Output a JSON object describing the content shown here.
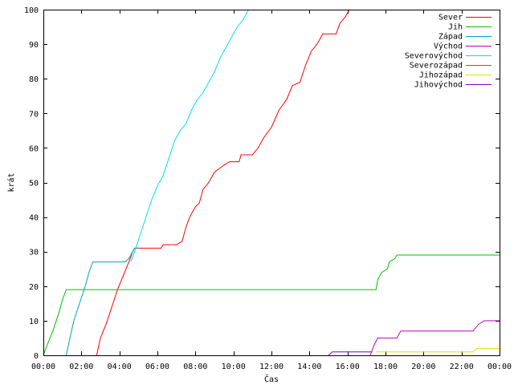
{
  "chart_data": {
    "type": "line",
    "xlabel": "Čas",
    "ylabel": "krát",
    "xlim": [
      0,
      24
    ],
    "ylim": [
      0,
      100
    ],
    "x_ticks": [
      {
        "v": 0,
        "label": "00:00"
      },
      {
        "v": 2,
        "label": "02:00"
      },
      {
        "v": 4,
        "label": "04:00"
      },
      {
        "v": 6,
        "label": "06:00"
      },
      {
        "v": 8,
        "label": "08:00"
      },
      {
        "v": 10,
        "label": "10:00"
      },
      {
        "v": 12,
        "label": "12:00"
      },
      {
        "v": 14,
        "label": "14:00"
      },
      {
        "v": 16,
        "label": "16:00"
      },
      {
        "v": 18,
        "label": "18:00"
      },
      {
        "v": 20,
        "label": "20:00"
      },
      {
        "v": 22,
        "label": "22:00"
      },
      {
        "v": 24,
        "label": "00:00"
      }
    ],
    "y_ticks": [
      {
        "v": 0,
        "label": "0"
      },
      {
        "v": 10,
        "label": "10"
      },
      {
        "v": 20,
        "label": "20"
      },
      {
        "v": 30,
        "label": "30"
      },
      {
        "v": 40,
        "label": "40"
      },
      {
        "v": 50,
        "label": "50"
      },
      {
        "v": 60,
        "label": "60"
      },
      {
        "v": 70,
        "label": "70"
      },
      {
        "v": 80,
        "label": "80"
      },
      {
        "v": 90,
        "label": "90"
      },
      {
        "v": 100,
        "label": "100"
      }
    ],
    "legend_position": "top-right",
    "grid": false,
    "series": [
      {
        "name": "Sever",
        "color": "#ff0000",
        "points": [
          [
            2.8,
            0
          ],
          [
            3.0,
            5
          ],
          [
            3.3,
            9
          ],
          [
            3.6,
            14
          ],
          [
            3.9,
            19
          ],
          [
            4.2,
            23
          ],
          [
            4.5,
            27
          ],
          [
            4.7,
            30
          ],
          [
            4.8,
            31
          ],
          [
            5.5,
            31
          ],
          [
            6.2,
            31
          ],
          [
            6.3,
            32
          ],
          [
            7.0,
            32
          ],
          [
            7.3,
            33
          ],
          [
            7.5,
            37
          ],
          [
            7.7,
            40
          ],
          [
            8.0,
            43
          ],
          [
            8.2,
            44
          ],
          [
            8.4,
            48
          ],
          [
            8.7,
            50
          ],
          [
            9.0,
            53
          ],
          [
            9.5,
            55
          ],
          [
            9.8,
            56
          ],
          [
            10.3,
            56
          ],
          [
            10.4,
            58
          ],
          [
            11.0,
            58
          ],
          [
            11.3,
            60
          ],
          [
            11.6,
            63
          ],
          [
            12.0,
            66
          ],
          [
            12.4,
            71
          ],
          [
            12.8,
            74
          ],
          [
            13.1,
            78
          ],
          [
            13.5,
            79
          ],
          [
            13.8,
            84
          ],
          [
            14.1,
            88
          ],
          [
            14.4,
            90
          ],
          [
            14.7,
            93
          ],
          [
            15.4,
            93
          ],
          [
            15.6,
            96
          ],
          [
            15.9,
            98
          ],
          [
            16.1,
            100
          ]
        ]
      },
      {
        "name": "Jih",
        "color": "#00c000",
        "points": [
          [
            0,
            0
          ],
          [
            0.2,
            3
          ],
          [
            0.5,
            7
          ],
          [
            0.8,
            12
          ],
          [
            1.0,
            16
          ],
          [
            1.2,
            19
          ],
          [
            17.5,
            19
          ],
          [
            17.6,
            22
          ],
          [
            17.8,
            24
          ],
          [
            18.1,
            25
          ],
          [
            18.2,
            27
          ],
          [
            18.5,
            28
          ],
          [
            18.6,
            29
          ],
          [
            24,
            29
          ]
        ]
      },
      {
        "name": "Západ",
        "color": "#00a0c0",
        "points": [
          [
            1.2,
            0
          ],
          [
            1.4,
            5
          ],
          [
            1.6,
            10
          ],
          [
            1.9,
            15
          ],
          [
            2.2,
            20
          ],
          [
            2.4,
            24
          ],
          [
            2.6,
            27
          ],
          [
            4.3,
            27
          ],
          [
            4.5,
            28
          ],
          [
            4.8,
            31
          ],
          [
            5.0,
            31
          ]
        ]
      },
      {
        "name": "Východ",
        "color": "#c000c0",
        "points": [
          [
            17.2,
            0
          ],
          [
            17.4,
            3
          ],
          [
            17.6,
            5
          ],
          [
            18.6,
            5
          ],
          [
            18.8,
            7
          ],
          [
            22.6,
            7
          ],
          [
            22.9,
            9
          ],
          [
            23.2,
            10
          ],
          [
            24,
            10
          ]
        ]
      },
      {
        "name": "Severovýchod",
        "color": "#00e0e0",
        "points": [
          [
            4.6,
            27
          ],
          [
            4.8,
            30
          ],
          [
            5.1,
            35
          ],
          [
            5.4,
            40
          ],
          [
            5.7,
            45
          ],
          [
            6.0,
            49
          ],
          [
            6.3,
            52
          ],
          [
            6.6,
            57
          ],
          [
            6.9,
            62
          ],
          [
            7.2,
            65
          ],
          [
            7.5,
            67
          ],
          [
            7.8,
            71
          ],
          [
            8.1,
            74
          ],
          [
            8.4,
            76
          ],
          [
            8.7,
            79
          ],
          [
            9.0,
            82
          ],
          [
            9.3,
            86
          ],
          [
            9.6,
            89
          ],
          [
            9.9,
            92
          ],
          [
            10.2,
            95
          ],
          [
            10.5,
            97
          ],
          [
            10.8,
            100
          ]
        ]
      },
      {
        "name": "Severozápad",
        "color": "#c04040",
        "points": []
      },
      {
        "name": "Jihozápad",
        "color": "#e8e000",
        "points": [
          [
            17.5,
            1
          ],
          [
            22.6,
            1
          ],
          [
            22.8,
            2
          ],
          [
            24,
            2
          ]
        ]
      },
      {
        "name": "Jihovýchod",
        "color": "#8000c0",
        "points": [
          [
            15.0,
            0
          ],
          [
            15.2,
            1
          ],
          [
            17.3,
            1
          ]
        ]
      }
    ]
  }
}
